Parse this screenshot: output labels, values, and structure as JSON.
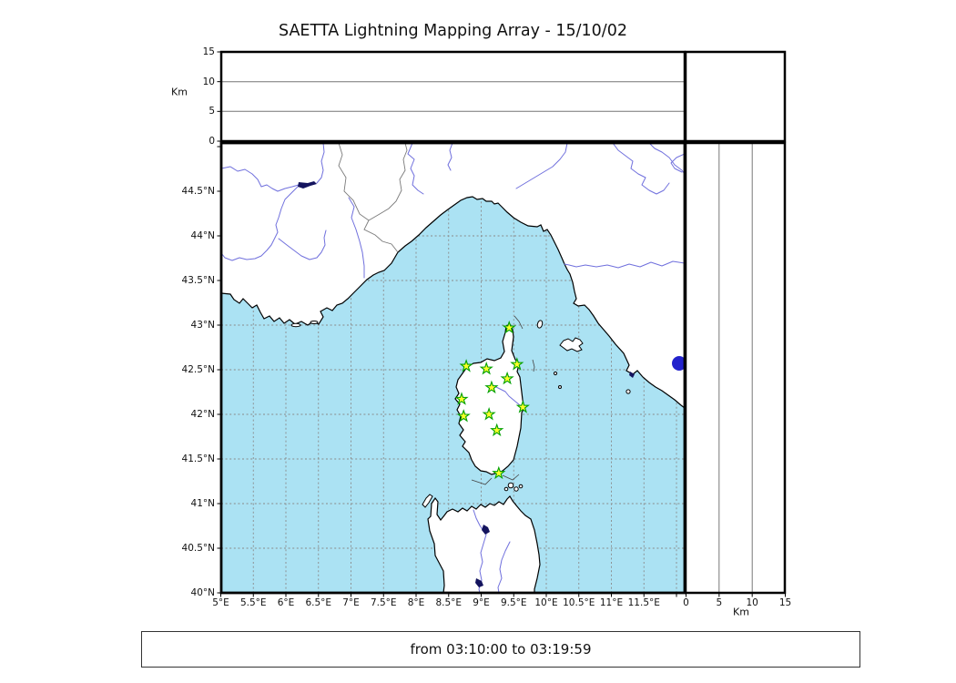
{
  "title": "SAETTA Lightning Mapping Array - 15/10/02",
  "footer": {
    "time_range": "from 03:10:00 to 03:19:59"
  },
  "altitude_panel": {
    "axis_label": "Km",
    "ticks": [
      "0",
      "5",
      "10",
      "15"
    ]
  },
  "right_panel": {
    "axis_label": "Km",
    "ticks": [
      "0",
      "5",
      "10",
      "15"
    ]
  },
  "map": {
    "lat_ticks": [
      "44.5°N",
      "44°N",
      "43.5°N",
      "43°N",
      "42.5°N",
      "42°N",
      "41.5°N",
      "41°N",
      "40.5°N",
      "40°N"
    ],
    "lon_ticks": [
      "5°E",
      "5.5°E",
      "6°E",
      "6.5°E",
      "7°E",
      "7.5°E",
      "8°E",
      "8.5°E",
      "9°E",
      "9.5°E",
      "10°E",
      "10.5°E",
      "11°E",
      "11.5°E"
    ],
    "stations": [
      {
        "lon": 9.43,
        "lat": 42.97
      },
      {
        "lon": 8.77,
        "lat": 42.54
      },
      {
        "lon": 9.08,
        "lat": 42.51
      },
      {
        "lon": 9.55,
        "lat": 42.56
      },
      {
        "lon": 9.4,
        "lat": 42.4
      },
      {
        "lon": 9.16,
        "lat": 42.3
      },
      {
        "lon": 8.7,
        "lat": 42.17
      },
      {
        "lon": 9.64,
        "lat": 42.08
      },
      {
        "lon": 9.12,
        "lat": 42.0
      },
      {
        "lon": 8.73,
        "lat": 41.98
      },
      {
        "lon": 9.24,
        "lat": 41.82
      },
      {
        "lon": 9.27,
        "lat": 41.34
      }
    ],
    "colors": {
      "sea": "#abe2f3",
      "land": "#ffffff",
      "coast": "#000000",
      "river": "#7070dd",
      "country_border": "#7a7a7a",
      "grid": "#8a8a8a",
      "lake": "#14145e",
      "lake_bolsena": "#2222cc",
      "star_fill": "#ffff2a",
      "star_stroke": "#00a000"
    }
  }
}
